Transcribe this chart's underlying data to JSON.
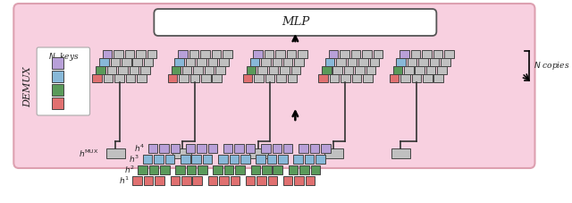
{
  "colors": {
    "purple": "#b8a0d8",
    "blue": "#88b8d8",
    "green": "#5a9a5a",
    "red": "#e07070",
    "gray": "#c0c0c0",
    "pink_bg": "#f8d0e0",
    "white": "#ffffff",
    "black": "#000000",
    "dark": "#222222",
    "outline": "#444444"
  },
  "fig_w": 6.4,
  "fig_h": 2.27,
  "dpi": 100
}
